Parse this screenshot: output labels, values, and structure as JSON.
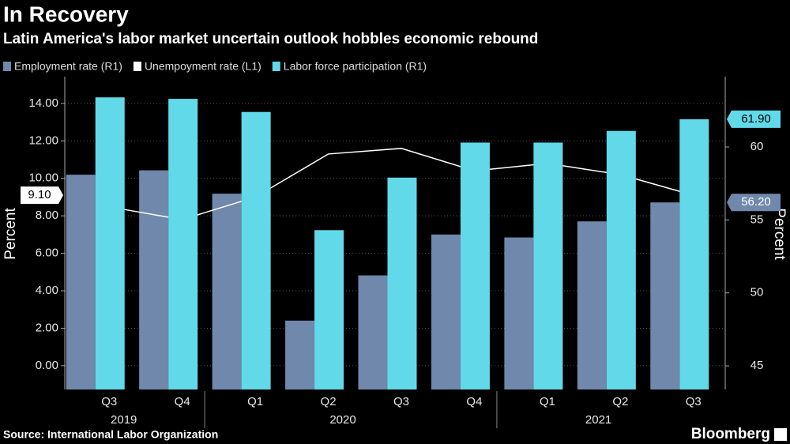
{
  "chart_data": {
    "type": "bar",
    "title": "In Recovery",
    "subtitle": "Latin America's labor market uncertain outlook hobbles economic rebound",
    "source": "Source: International Labor Organization",
    "brand": "Bloomberg",
    "y_axis_label": "Percent",
    "y2_axis_label": "Percent",
    "categories": [
      "Q3",
      "Q4",
      "Q1",
      "Q2",
      "Q3",
      "Q4",
      "Q1",
      "Q2",
      "Q3"
    ],
    "year_groups": [
      {
        "label": "2019",
        "count": 2
      },
      {
        "label": "2020",
        "count": 4
      },
      {
        "label": "2021",
        "count": 3
      }
    ],
    "series": [
      {
        "name": "Employment rate (R1)",
        "type": "bar",
        "axis": "y2",
        "color": "#7088ab",
        "values": [
          58.1,
          58.4,
          56.8,
          48.1,
          51.2,
          54.0,
          53.8,
          54.9,
          56.2
        ],
        "value_labels": [
          null,
          null,
          null,
          null,
          null,
          null,
          null,
          null,
          "56.20"
        ]
      },
      {
        "name": "Unempoyment rate (L1)",
        "type": "line",
        "axis": "y",
        "color": "#ffffff",
        "values": [
          8.48,
          7.8,
          9.0,
          11.3,
          11.6,
          10.4,
          10.8,
          10.2,
          9.1
        ],
        "value_labels": [
          null,
          null,
          null,
          null,
          null,
          null,
          null,
          null,
          "9.10"
        ]
      },
      {
        "name": "Labor force participation (R1)",
        "type": "bar",
        "axis": "y2",
        "color": "#62d9e8",
        "values": [
          63.4,
          63.3,
          62.4,
          54.3,
          57.9,
          60.3,
          60.3,
          61.1,
          61.9
        ],
        "value_labels": [
          null,
          null,
          null,
          null,
          null,
          null,
          null,
          null,
          "61.90"
        ]
      }
    ],
    "ylim": [
      -1.27,
      15.43
    ],
    "yticks": [
      {
        "value": 0,
        "label": "0.00"
      },
      {
        "value": 2,
        "label": "2.00"
      },
      {
        "value": 4,
        "label": "4.00"
      },
      {
        "value": 6,
        "label": "6.00"
      },
      {
        "value": 8,
        "label": "8.00"
      },
      {
        "value": 10,
        "label": "10.00"
      },
      {
        "value": 12,
        "label": "12.00"
      },
      {
        "value": 14,
        "label": "14.00"
      }
    ],
    "y2lim": [
      43.38,
      64.82
    ],
    "y2ticks": [
      45,
      50,
      55,
      60
    ],
    "grid": true
  }
}
